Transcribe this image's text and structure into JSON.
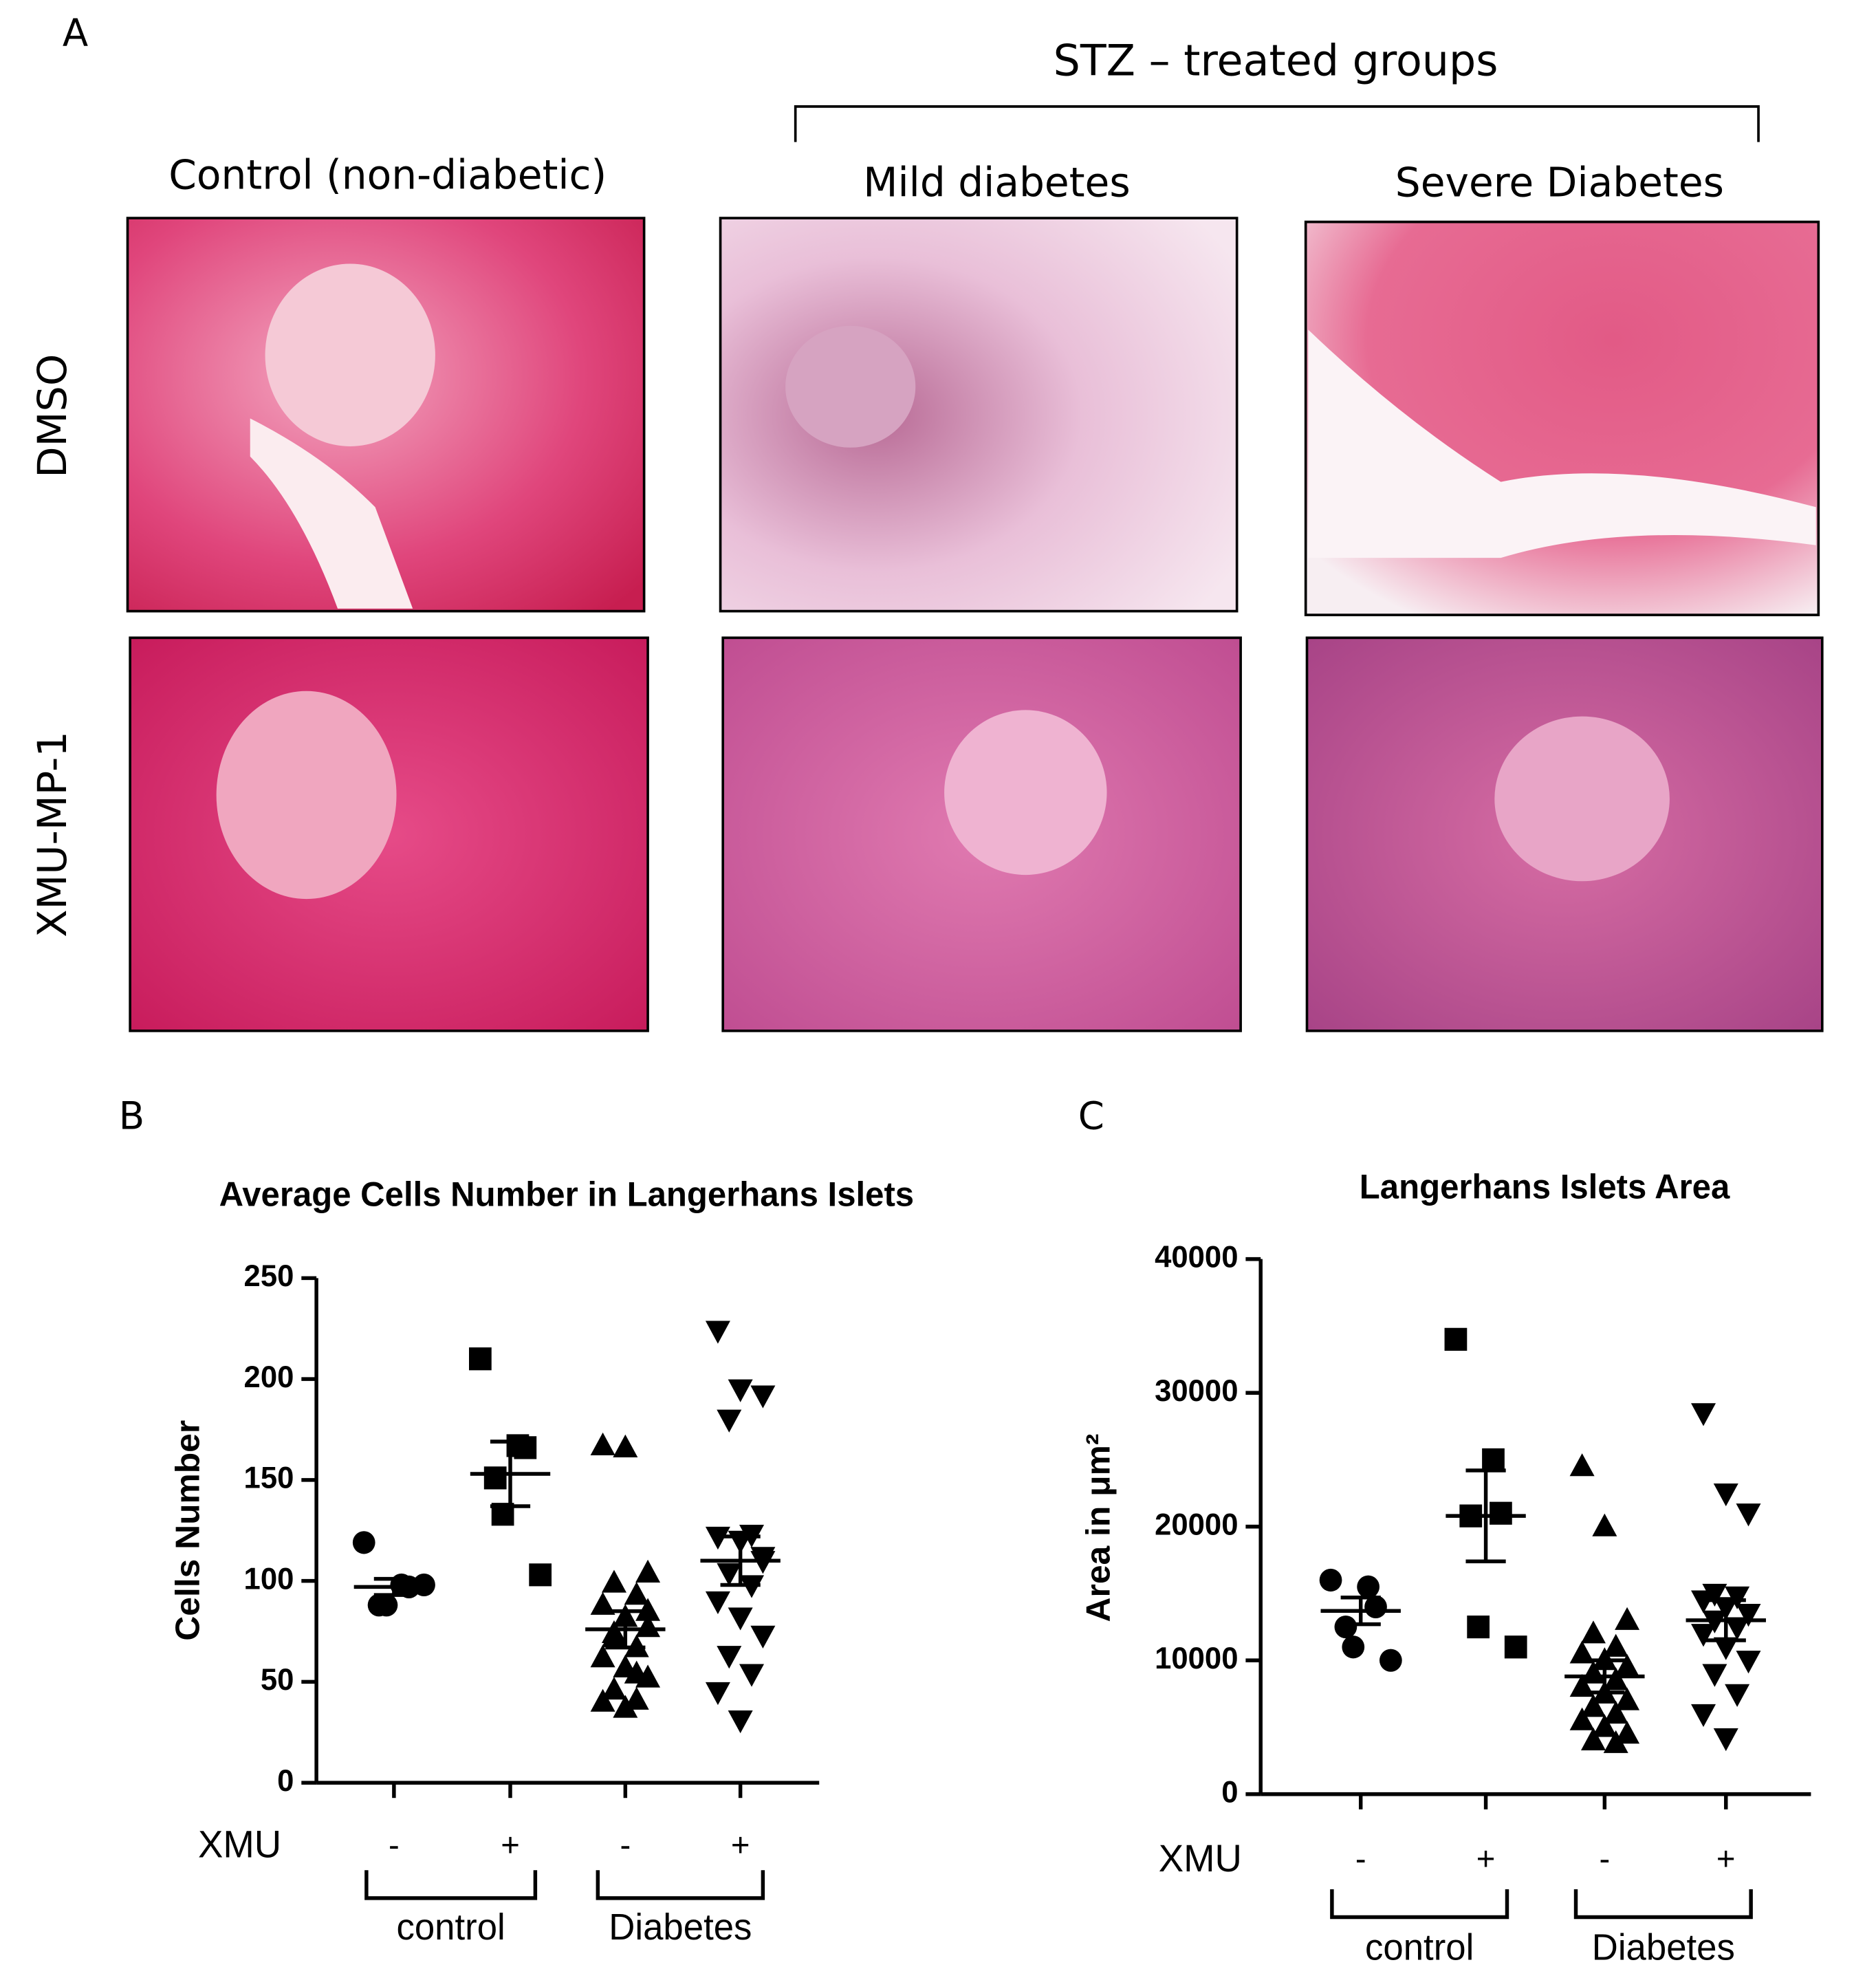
{
  "figure": {
    "panel_a": {
      "letter": "A",
      "group_header": "STZ – treated groups",
      "columns": [
        "Control (non-diabetic)",
        "Mild diabetes",
        "Severe Diabetes"
      ],
      "rows": [
        "DMSO",
        "XMU-MP-1"
      ]
    }
  },
  "chart_data": [
    {
      "type": "dotplot",
      "letter": "B",
      "title": "Average Cells Number in Langerhans Islets",
      "ylabel": "Cells Number",
      "xlabel": "XMU",
      "categories": [
        "-",
        "+",
        "-",
        "+"
      ],
      "brackets": [
        "control",
        "Diabetes"
      ],
      "markers": [
        "circle",
        "square",
        "triangle",
        "triangle-down"
      ],
      "color": "#000000",
      "points": [
        [
          119,
          98,
          97,
          88,
          88,
          98
        ],
        [
          210,
          167,
          166,
          151,
          133,
          103
        ],
        [
          167,
          166,
          104,
          99,
          93,
          88,
          82,
          77,
          72,
          67,
          62,
          57,
          52,
          46,
          41,
          40,
          37,
          85,
          74,
          54
        ],
        [
          224,
          195,
          192,
          180,
          123,
          122,
          120,
          112,
          104,
          98,
          90,
          82,
          73,
          63,
          54,
          45,
          31,
          110
        ]
      ],
      "means": [
        97,
        153,
        76,
        110
      ],
      "sems": [
        4,
        16,
        9,
        12
      ],
      "ylim": [
        0,
        250
      ],
      "yticks": [
        0,
        50,
        100,
        150,
        200,
        250
      ]
    },
    {
      "type": "dotplot",
      "letter": "C",
      "title": "Langerhans Islets Area",
      "ylabel": "Area in μm²",
      "xlabel": "XMU",
      "categories": [
        "-",
        "+",
        "-",
        "+"
      ],
      "brackets": [
        "control",
        "Diabetes"
      ],
      "markers": [
        "circle",
        "square",
        "triangle",
        "triangle-down"
      ],
      "color": "#000000",
      "points": [
        [
          16000,
          15500,
          14000,
          12500,
          11000,
          10000
        ],
        [
          34000,
          25000,
          21000,
          20800,
          12500,
          11000
        ],
        [
          24500,
          20000,
          13000,
          12000,
          11000,
          10500,
          10000,
          9500,
          9000,
          8500,
          8000,
          7500,
          7000,
          6500,
          6000,
          5500,
          5000,
          4500,
          4000,
          3800
        ],
        [
          28500,
          22500,
          21000,
          15000,
          14800,
          14500,
          14000,
          13500,
          13000,
          12500,
          12000,
          11000,
          10000,
          9000,
          7500,
          6000,
          4200
        ]
      ],
      "means": [
        13700,
        20800,
        8800,
        13000
      ],
      "sems": [
        1000,
        3400,
        1200,
        1500
      ],
      "ylim": [
        0,
        40000
      ],
      "yticks": [
        0,
        10000,
        20000,
        30000,
        40000
      ]
    }
  ]
}
